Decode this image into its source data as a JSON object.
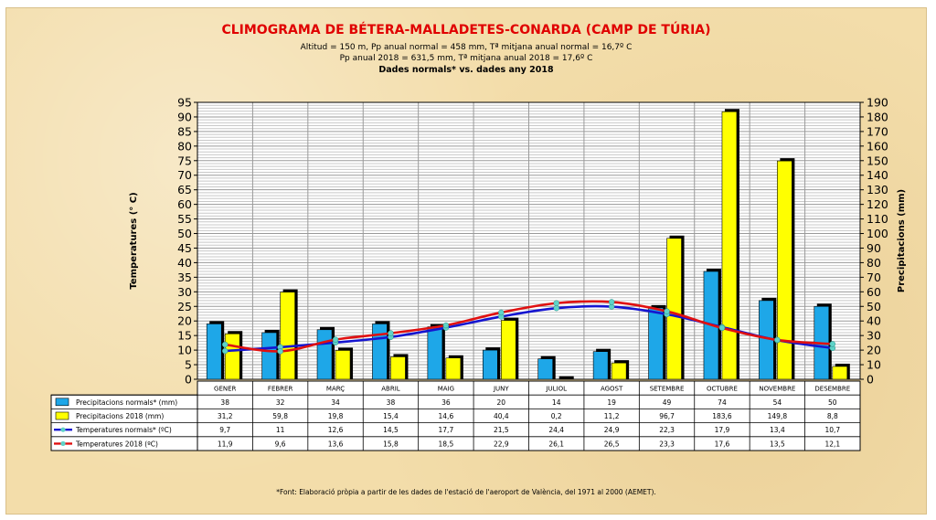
{
  "chart_data": {
    "type": "bar",
    "title": "CLIMOGRAMA DE BÉTERA-MALLADETES-CONARDA (CAMP DE TÚRIA)",
    "subtitle1": "Altitud = 150 m, Pp anual normal = 458 mm, Tª mitjana anual normal = 16,7º C",
    "subtitle2": "Pp anual 2018 = 631,5 mm, Tª mitjana anual 2018 = 17,6º C",
    "subtitle3": "Dades normals* vs. dades any 2018",
    "ylabel_left": "Temperatures (° C)",
    "ylabel_right": "Precipitacions (mm)",
    "ylim_left": [
      0,
      95
    ],
    "ylim_right": [
      0,
      190
    ],
    "yticks_left": [
      "0",
      "5",
      "10",
      "15",
      "20",
      "25",
      "30",
      "35",
      "40",
      "45",
      "50",
      "55",
      "60",
      "65",
      "70",
      "75",
      "80",
      "85",
      "90",
      "95"
    ],
    "yticks_right": [
      "0",
      "10",
      "20",
      "30",
      "40",
      "50",
      "60",
      "70",
      "80",
      "90",
      "100",
      "110",
      "120",
      "130",
      "140",
      "150",
      "160",
      "170",
      "180",
      "190"
    ],
    "categories": [
      "GENER",
      "FEBRER",
      "MARÇ",
      "ABRIL",
      "MAIG",
      "JUNY",
      "JULIOL",
      "AGOST",
      "SETEMBRE",
      "OCTUBRE",
      "NOVEMBRE",
      "DESEMBRE"
    ],
    "series": [
      {
        "name": "Precipitacions normals* (mm)",
        "kind": "bar",
        "axis": "right",
        "color": "#1ea7e8",
        "values": [
          38,
          32,
          34,
          38,
          36,
          20,
          14,
          19,
          49,
          74,
          54,
          50
        ],
        "labels": [
          "38",
          "32",
          "34",
          "38",
          "36",
          "20",
          "14",
          "19",
          "49",
          "74",
          "54",
          "50"
        ]
      },
      {
        "name": "Precipitacions 2018 (mm)",
        "kind": "bar",
        "axis": "right",
        "color": "#ffff00",
        "values": [
          31.2,
          59.8,
          19.8,
          15.4,
          14.6,
          40.4,
          0.2,
          11.2,
          96.7,
          183.6,
          149.8,
          8.8
        ],
        "labels": [
          "31,2",
          "59,8",
          "19,8",
          "15,4",
          "14,6",
          "40,4",
          "0,2",
          "11,2",
          "96,7",
          "183,6",
          "149,8",
          "8,8"
        ]
      },
      {
        "name": "Temperatures normals* (ºC)",
        "kind": "line",
        "axis": "left",
        "color": "#1515d0",
        "values": [
          9.7,
          11,
          12.6,
          14.5,
          17.7,
          21.5,
          24.4,
          24.9,
          22.3,
          17.9,
          13.4,
          10.7
        ],
        "labels": [
          "9,7",
          "11",
          "12,6",
          "14,5",
          "17,7",
          "21,5",
          "24,4",
          "24,9",
          "22,3",
          "17,9",
          "13,4",
          "10,7"
        ]
      },
      {
        "name": "Temperatures 2018 (ºC)",
        "kind": "line",
        "axis": "left",
        "color": "#e01010",
        "values": [
          11.9,
          9.6,
          13.6,
          15.8,
          18.5,
          22.9,
          26.1,
          26.5,
          23.3,
          17.6,
          13.5,
          12.1
        ],
        "labels": [
          "11,9",
          "9,6",
          "13,6",
          "15,8",
          "18,5",
          "22,9",
          "26,1",
          "26,5",
          "23,3",
          "17,6",
          "13,5",
          "12,1"
        ]
      }
    ],
    "grid": true,
    "marker_color": "#5fd3c8",
    "footnote": "*Font: Elaboració pròpia a partir de les dades de l'estació de l'aeroport de València, del 1971 al 2000 (AEMET)."
  }
}
